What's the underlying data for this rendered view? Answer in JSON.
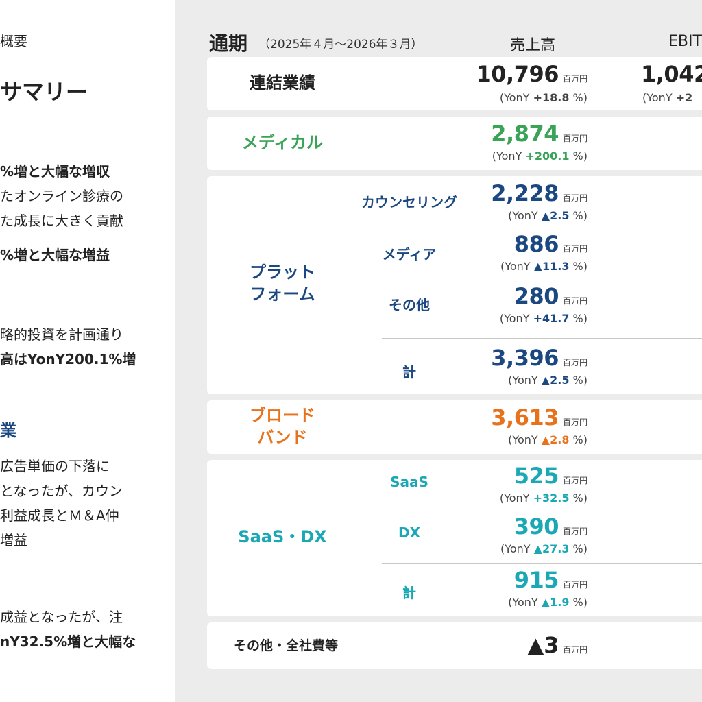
{
  "left": {
    "lines": [
      {
        "t": "概要",
        "b": false
      },
      {
        "t": "サマリー",
        "b": true
      },
      {
        "t": "%増と大幅な増収",
        "b": true
      },
      {
        "t": "たオンライン診療の",
        "b": false
      },
      {
        "t": "た成長に大きく貢献",
        "b": false
      },
      {
        "t": "%増と大幅な増益",
        "b": true
      },
      {
        "t": "略的投資を計画通り",
        "b": false
      },
      {
        "t": "高はYonY200.1%増",
        "b": true
      },
      {
        "t": "業",
        "b": true
      },
      {
        "t": "広告単価の下落に",
        "b": false
      },
      {
        "t": "となったが、カウン",
        "b": false
      },
      {
        "t": "利益成長とＭ＆A仲",
        "b": false
      },
      {
        "t": "増益",
        "b": false
      },
      {
        "t": "成益となったが、注",
        "b": false
      },
      {
        "t": "nY32.5%増と大幅な",
        "b": true
      }
    ]
  },
  "header": {
    "title": "通期",
    "period": "（2025年４月〜2026年３月）",
    "col_sales": "売上高",
    "col_ebitda": "EBIT"
  },
  "unit": "百万円",
  "yoy_prefix": "(YonY",
  "yoy_suffix": "%)",
  "rows": {
    "consolidated": {
      "label": "連結業績",
      "value": "10,796",
      "yoy": "+18.8",
      "ebitda": "1,042",
      "ebitda_yoy_prefix": "(YonY",
      "ebitda_yoy": "+2"
    },
    "medical": {
      "label": "メディカル",
      "value": "2,874",
      "yoy": "+200.1"
    },
    "platform": {
      "label_line1": "プラット",
      "label_line2": "フォーム",
      "counseling": {
        "label": "カウンセリング",
        "value": "2,228",
        "yoy": "▲2.5"
      },
      "media": {
        "label": "メディア",
        "value": "886",
        "yoy": "▲11.3"
      },
      "other": {
        "label": "その他",
        "value": "280",
        "yoy": "+41.7"
      },
      "total": {
        "label": "計",
        "value": "3,396",
        "yoy": "▲2.5"
      }
    },
    "broadband": {
      "label_line1": "ブロード",
      "label_line2": "バンド",
      "value": "3,613",
      "yoy": "▲2.8"
    },
    "saas_dx": {
      "label": "SaaS・DX",
      "saas": {
        "label": "SaaS",
        "value": "525",
        "yoy": "+32.5"
      },
      "dx": {
        "label": "DX",
        "value": "390",
        "yoy": "▲27.3"
      },
      "total": {
        "label": "計",
        "value": "915",
        "yoy": "▲1.9"
      }
    },
    "corporate": {
      "label": "その他・全社費等",
      "value": "▲3"
    }
  },
  "colors": {
    "medical": "#3aa357",
    "platform": "#1c4882",
    "broadband": "#e8721c",
    "saas_dx": "#1aa8b5",
    "background": "#ececec"
  }
}
